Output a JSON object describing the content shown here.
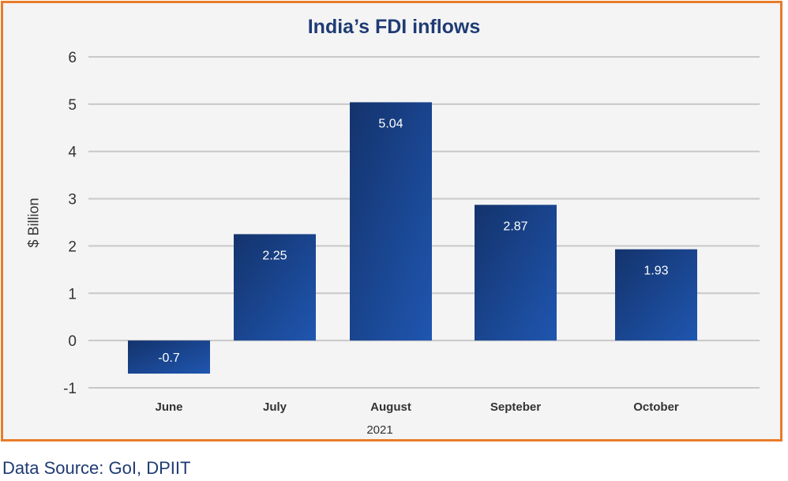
{
  "chart_data": {
    "type": "bar",
    "title": "India’s FDI inflows",
    "ylabel": "$ Billion",
    "xlabel": "2021",
    "categories": [
      "June",
      "July",
      "August",
      "Septeber",
      "October"
    ],
    "values": [
      -0.7,
      2.25,
      5.04,
      2.87,
      1.93
    ],
    "data_labels": [
      "-0.7",
      "2.25",
      "5.04",
      "2.87",
      "1.93"
    ],
    "ylim": [
      -1,
      6
    ],
    "yticks": [
      -1,
      0,
      1,
      2,
      3,
      4,
      5,
      6
    ],
    "grid": true,
    "legend": "none",
    "colors": {
      "bar_light": "#1f4fa3",
      "bar_dark": "#14336c",
      "frame": "#e87b2a",
      "title": "#1f3b73"
    }
  },
  "source": "Data Source: GoI, DPIIT"
}
